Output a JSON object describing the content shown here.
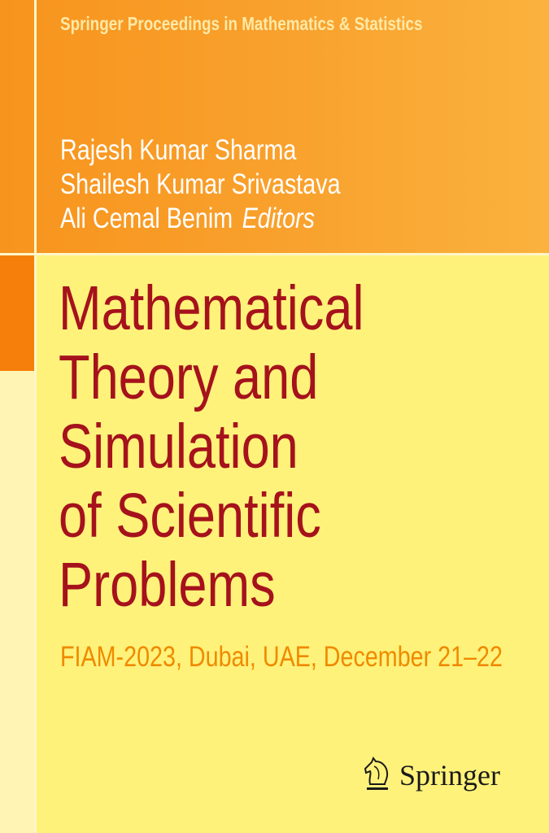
{
  "series": "Springer Proceedings in Mathematics & Statistics",
  "editors": [
    "Rajesh Kumar Sharma",
    "Shailesh Kumar Srivastava",
    "Ali Cemal Benim"
  ],
  "editors_label": "Editors",
  "title_lines": [
    "Mathematical",
    "Theory and",
    "Simulation",
    "of Scientific",
    "Problems"
  ],
  "subtitle": "FIAM-2023, Dubai, UAE, December 21–22",
  "publisher": "Springer",
  "colors": {
    "title": "#A5121C",
    "subtitle": "#F08A00",
    "background": "#FFF27A",
    "band": "#F7941D"
  }
}
